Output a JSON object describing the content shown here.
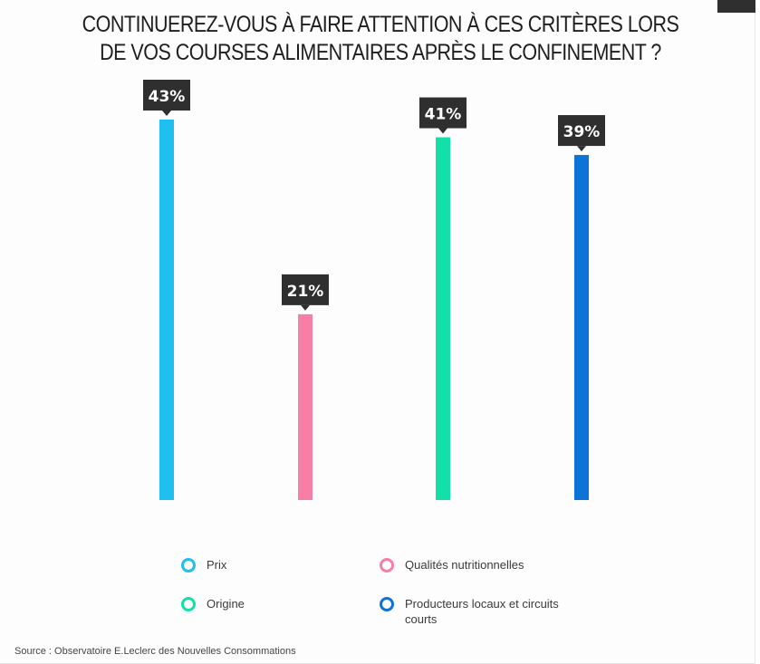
{
  "title": "CONTINUEREZ-VOUS À FAIRE ATTENTION À CES CRITÈRES LORS DE VOS COURSES ALIMENTAIRES APRÈS LE CONFINEMENT ?",
  "source": "Source : Observatoire E.Leclerc des Nouvelles Consommations",
  "colors": {
    "prix": "#1fbff0",
    "qualites": "#f77fa6",
    "origine": "#13e0a8",
    "producteurs": "#0b74d6",
    "label_bg": "#2f2f2f"
  },
  "chart_data": {
    "type": "bar",
    "title": "CONTINUEREZ-VOUS À FAIRE ATTENTION À CES CRITÈRES LORS DE VOS COURSES ALIMENTAIRES APRÈS LE CONFINEMENT ?",
    "categories": [
      "Prix",
      "Qualités nutritionnelles",
      "Origine",
      "Producteurs locaux et circuits courts"
    ],
    "values": [
      43,
      21,
      41,
      39
    ],
    "value_labels": [
      "43%",
      "21%",
      "41%",
      "39%"
    ],
    "unit": "%",
    "ylim": [
      0,
      43
    ],
    "grid": false,
    "legend_position": "bottom",
    "xlabel": "",
    "ylabel": ""
  },
  "legend": [
    {
      "label": "Prix",
      "color": "#1fbff0"
    },
    {
      "label": "Qualités nutritionnelles",
      "color": "#f77fa6"
    },
    {
      "label": "Origine",
      "color": "#13e0a8"
    },
    {
      "label": "Producteurs locaux et circuits courts",
      "color": "#0b74d6"
    }
  ]
}
